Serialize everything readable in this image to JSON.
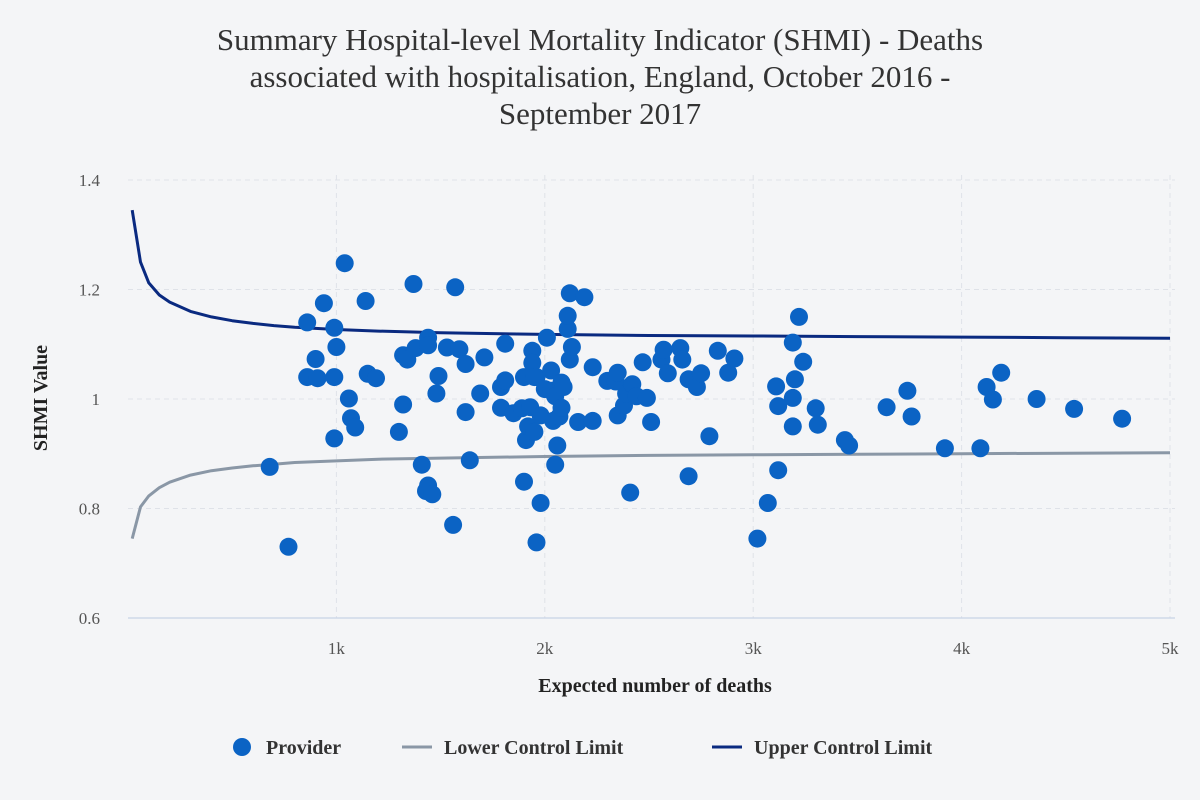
{
  "chart_data": {
    "type": "scatter",
    "title": "Summary Hospital-level Mortality Indicator (SHMI) - Deaths associated with hospitalisation, England, October 2016 - September 2017",
    "title_lines": [
      "Summary Hospital-level Mortality Indicator (SHMI) - Deaths",
      "associated with hospitalisation, England, October 2016 -",
      "September 2017"
    ],
    "xlabel": "Expected number of deaths",
    "ylabel": "SHMI Value",
    "xlim": [
      0,
      5000
    ],
    "ylim": [
      0.6,
      1.4
    ],
    "x_ticks": [
      {
        "value": 1000,
        "label": "1k"
      },
      {
        "value": 2000,
        "label": "2k"
      },
      {
        "value": 3000,
        "label": "3k"
      },
      {
        "value": 4000,
        "label": "4k"
      },
      {
        "value": 5000,
        "label": "5k"
      }
    ],
    "y_ticks": [
      {
        "value": 0.6,
        "label": "0.6"
      },
      {
        "value": 0.8,
        "label": "0.8"
      },
      {
        "value": 1.0,
        "label": "1"
      },
      {
        "value": 1.2,
        "label": "1.2"
      },
      {
        "value": 1.4,
        "label": "1.4"
      }
    ],
    "grid": true,
    "legend_position": "bottom-center",
    "series": [
      {
        "name": "Provider",
        "kind": "scatter",
        "color": "#0b63c4",
        "points": [
          [
            680,
            0.876
          ],
          [
            770,
            0.73
          ],
          [
            860,
            1.14
          ],
          [
            860,
            1.04
          ],
          [
            900,
            1.073
          ],
          [
            910,
            1.038
          ],
          [
            940,
            1.175
          ],
          [
            990,
            1.13
          ],
          [
            990,
            1.04
          ],
          [
            1000,
            1.095
          ],
          [
            990,
            0.928
          ],
          [
            1040,
            1.248
          ],
          [
            1060,
            1.001
          ],
          [
            1070,
            0.965
          ],
          [
            1090,
            0.948
          ],
          [
            1140,
            1.179
          ],
          [
            1150,
            1.046
          ],
          [
            1190,
            1.038
          ],
          [
            1300,
            0.94
          ],
          [
            1320,
            0.99
          ],
          [
            1320,
            1.08
          ],
          [
            1340,
            1.072
          ],
          [
            1370,
            1.21
          ],
          [
            1380,
            1.093
          ],
          [
            1410,
            0.88
          ],
          [
            1430,
            0.832
          ],
          [
            1440,
            1.112
          ],
          [
            1440,
            1.098
          ],
          [
            1440,
            0.842
          ],
          [
            1460,
            0.826
          ],
          [
            1480,
            1.01
          ],
          [
            1490,
            1.042
          ],
          [
            1530,
            1.094
          ],
          [
            1560,
            0.77
          ],
          [
            1570,
            1.204
          ],
          [
            1590,
            1.091
          ],
          [
            1620,
            1.064
          ],
          [
            1620,
            0.976
          ],
          [
            1640,
            0.888
          ],
          [
            1690,
            1.01
          ],
          [
            1710,
            1.076
          ],
          [
            1790,
            1.022
          ],
          [
            1790,
            0.984
          ],
          [
            1810,
            1.034
          ],
          [
            1810,
            1.101
          ],
          [
            1850,
            0.974
          ],
          [
            1890,
            0.983
          ],
          [
            1900,
            0.849
          ],
          [
            1900,
            1.04
          ],
          [
            1910,
            0.925
          ],
          [
            1920,
            0.95
          ],
          [
            1930,
            0.985
          ],
          [
            1950,
            0.94
          ],
          [
            1940,
            1.088
          ],
          [
            1960,
            1.04
          ],
          [
            1940,
            1.066
          ],
          [
            1950,
            1.04
          ],
          [
            1960,
            0.738
          ],
          [
            1980,
            0.81
          ],
          [
            1980,
            0.97
          ],
          [
            2000,
            1.018
          ],
          [
            2010,
            1.112
          ],
          [
            2030,
            1.015
          ],
          [
            2030,
            1.052
          ],
          [
            2040,
            0.96
          ],
          [
            2050,
            1.005
          ],
          [
            2050,
            0.88
          ],
          [
            2060,
            0.915
          ],
          [
            2070,
            0.968
          ],
          [
            2080,
            0.984
          ],
          [
            2080,
            1.03
          ],
          [
            2090,
            1.022
          ],
          [
            2110,
            1.128
          ],
          [
            2110,
            1.152
          ],
          [
            2120,
            1.072
          ],
          [
            2120,
            1.193
          ],
          [
            2130,
            1.095
          ],
          [
            2160,
            0.958
          ],
          [
            2190,
            1.186
          ],
          [
            2230,
            0.96
          ],
          [
            2230,
            1.058
          ],
          [
            2300,
            1.033
          ],
          [
            2340,
            1.032
          ],
          [
            2350,
            1.048
          ],
          [
            2350,
            0.97
          ],
          [
            2380,
            0.988
          ],
          [
            2390,
            1.01
          ],
          [
            2410,
            0.829
          ],
          [
            2420,
            1.027
          ],
          [
            2440,
            1.005
          ],
          [
            2470,
            1.067
          ],
          [
            2490,
            1.002
          ],
          [
            2510,
            0.958
          ],
          [
            2560,
            1.072
          ],
          [
            2570,
            1.09
          ],
          [
            2590,
            1.047
          ],
          [
            2650,
            1.093
          ],
          [
            2660,
            1.072
          ],
          [
            2690,
            0.859
          ],
          [
            2690,
            1.036
          ],
          [
            2720,
            1.03
          ],
          [
            2730,
            1.022
          ],
          [
            2750,
            1.047
          ],
          [
            2790,
            0.932
          ],
          [
            2830,
            1.088
          ],
          [
            2880,
            1.048
          ],
          [
            2910,
            1.074
          ],
          [
            3020,
            0.745
          ],
          [
            3070,
            0.81
          ],
          [
            3110,
            1.023
          ],
          [
            3120,
            0.987
          ],
          [
            3120,
            0.87
          ],
          [
            3190,
            1.002
          ],
          [
            3190,
            1.103
          ],
          [
            3190,
            0.95
          ],
          [
            3200,
            1.036
          ],
          [
            3220,
            1.15
          ],
          [
            3240,
            1.068
          ],
          [
            3300,
            0.983
          ],
          [
            3310,
            0.953
          ],
          [
            3440,
            0.925
          ],
          [
            3460,
            0.915
          ],
          [
            3640,
            0.985
          ],
          [
            3740,
            1.015
          ],
          [
            3760,
            0.968
          ],
          [
            3920,
            0.91
          ],
          [
            4090,
            0.91
          ],
          [
            4120,
            1.022
          ],
          [
            4150,
            0.999
          ],
          [
            4190,
            1.048
          ],
          [
            4360,
            1.0
          ],
          [
            4540,
            0.982
          ],
          [
            4770,
            0.964
          ]
        ]
      },
      {
        "name": "Lower Control Limit",
        "kind": "line",
        "color": "#8a97a6",
        "points": [
          [
            20,
            0.745
          ],
          [
            60,
            0.803
          ],
          [
            100,
            0.823
          ],
          [
            150,
            0.838
          ],
          [
            200,
            0.848
          ],
          [
            300,
            0.861
          ],
          [
            400,
            0.869
          ],
          [
            500,
            0.874
          ],
          [
            600,
            0.878
          ],
          [
            700,
            0.881
          ],
          [
            800,
            0.884
          ],
          [
            1000,
            0.887
          ],
          [
            1200,
            0.89
          ],
          [
            1500,
            0.892
          ],
          [
            2000,
            0.895
          ],
          [
            2500,
            0.897
          ],
          [
            3000,
            0.898
          ],
          [
            3500,
            0.899
          ],
          [
            4000,
            0.9
          ],
          [
            4500,
            0.901
          ],
          [
            5000,
            0.902
          ]
        ]
      },
      {
        "name": "Upper Control Limit",
        "kind": "line",
        "color": "#0a2a80",
        "points": [
          [
            20,
            1.345
          ],
          [
            60,
            1.25
          ],
          [
            100,
            1.212
          ],
          [
            150,
            1.19
          ],
          [
            200,
            1.177
          ],
          [
            300,
            1.16
          ],
          [
            400,
            1.15
          ],
          [
            500,
            1.143
          ],
          [
            600,
            1.138
          ],
          [
            700,
            1.134
          ],
          [
            800,
            1.131
          ],
          [
            1000,
            1.127
          ],
          [
            1200,
            1.124
          ],
          [
            1500,
            1.121
          ],
          [
            2000,
            1.118
          ],
          [
            2500,
            1.116
          ],
          [
            3000,
            1.115
          ],
          [
            3500,
            1.114
          ],
          [
            4000,
            1.113
          ],
          [
            4500,
            1.112
          ],
          [
            5000,
            1.111
          ]
        ]
      }
    ]
  }
}
